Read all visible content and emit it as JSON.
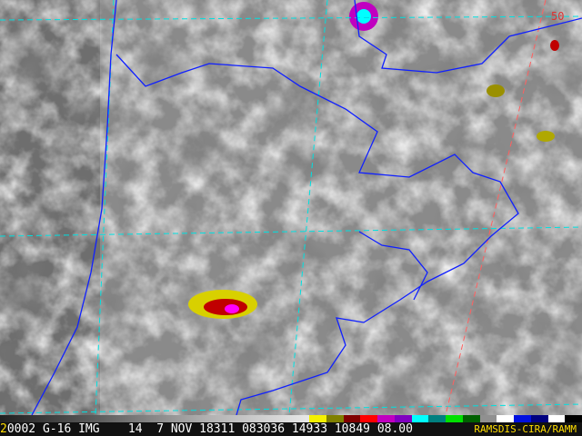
{
  "image": {
    "type": "GOES-16 infrared satellite image, enhanced",
    "region": "southern South America",
    "colors": {
      "coast_border": "#1020ff",
      "lat_lon_grid": "#00e0e0",
      "grid_alt": "#ff6060",
      "cold_tops": [
        "#e8e000",
        "#c00000",
        "#ff00ff",
        "#00ffff",
        "#00c000"
      ]
    }
  },
  "grid_label": "50",
  "infobar": {
    "frame_number": "2",
    "text": "0002 G-16 IMG    14  7 NOV 18311 083036 14933 10849 08.00",
    "credit": "RAMSDIS-CIRA/RAMM"
  },
  "color_scale": [
    "#606060",
    "#b0b0b0",
    "#e8e8e8",
    "#f4f000",
    "#808000",
    "#800000",
    "#ff0000",
    "#c000c0",
    "#8000c0",
    "#00ffff",
    "#008080",
    "#00e000",
    "#006000",
    "#909090",
    "#ffffff",
    "#0010e0",
    "#000080",
    "#ffffff",
    "#000000"
  ]
}
